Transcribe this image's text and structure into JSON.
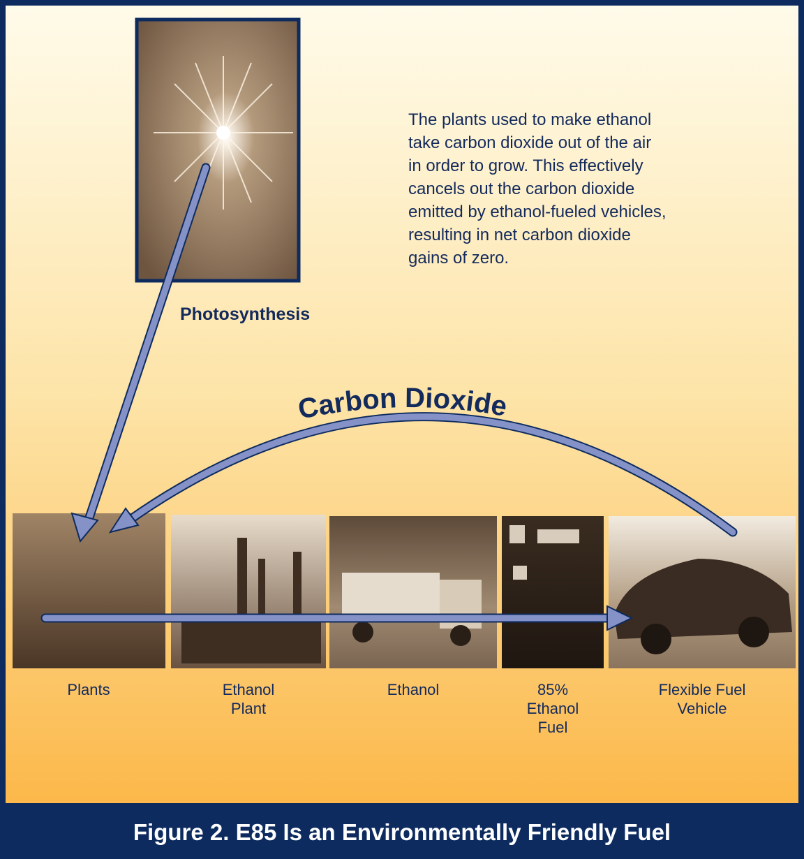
{
  "photosynthesis_label": "Photosynthesis",
  "description": [
    "The plants used to make ethanol",
    "take carbon dioxide out of the air",
    "in order to grow. This effectively",
    "cancels out the carbon dioxide",
    "emitted by ethanol-fueled vehicles,",
    "resulting in net carbon dioxide",
    "gains of zero."
  ],
  "arc_label": "Carbon Dioxide",
  "stages": [
    {
      "label": [
        "Plants"
      ]
    },
    {
      "label": [
        "Ethanol",
        "Plant"
      ]
    },
    {
      "label": [
        "Ethanol"
      ]
    },
    {
      "label": [
        "85%",
        "Ethanol",
        "Fuel"
      ]
    },
    {
      "label": [
        "Flexible Fuel",
        "Vehicle"
      ]
    }
  ],
  "caption": "Figure 2. E85 Is an Environmentally Friendly Fuel"
}
